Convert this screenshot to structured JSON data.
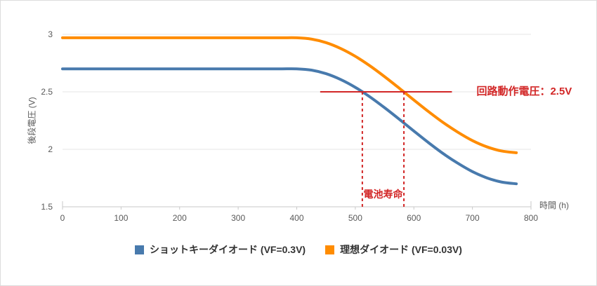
{
  "chart": {
    "y_axis": {
      "label": "後段電圧 (V)"
    },
    "x_axis": {
      "label": "時間 (h)"
    },
    "legend": [
      {
        "key": "schottky",
        "label": "ショットキーダイオード (VF=0.3V)",
        "color": "#487aad"
      },
      {
        "key": "ideal",
        "label": "理想ダイオード (VF=0.03V)",
        "color": "#ff8c00"
      }
    ],
    "annotations": {
      "threshold": {
        "label": "回路動作電圧：2.5V"
      },
      "battery_life": {
        "label": "電池寿命"
      }
    }
  },
  "chart_data": {
    "type": "line",
    "title": "",
    "xlabel": "時間 (h)",
    "ylabel": "後段電圧 (V)",
    "xlim": [
      0,
      800
    ],
    "ylim": [
      1.5,
      3.0
    ],
    "x_ticks": [
      "0",
      "100",
      "200",
      "300",
      "400",
      "500",
      "600",
      "700",
      "800"
    ],
    "y_ticks": [
      "1.5",
      "2",
      "2.5",
      "3"
    ],
    "grid": "horizontal",
    "legend_position": "bottom-center",
    "x": [
      0,
      25,
      50,
      75,
      100,
      125,
      150,
      175,
      200,
      225,
      250,
      275,
      300,
      325,
      350,
      375,
      400,
      425,
      450,
      475,
      500,
      525,
      550,
      575,
      600,
      625,
      650,
      675,
      700,
      725,
      750,
      775
    ],
    "series": [
      {
        "key": "schottky",
        "name": "ショットキーダイオード (VF=0.3V)",
        "color": "#487aad",
        "values": [
          2.7,
          2.7,
          2.7,
          2.7,
          2.7,
          2.7,
          2.7,
          2.7,
          2.7,
          2.7,
          2.7,
          2.7,
          2.7,
          2.7,
          2.7,
          2.7,
          2.7,
          2.689,
          2.658,
          2.607,
          2.539,
          2.456,
          2.362,
          2.262,
          2.159,
          2.058,
          1.963,
          1.879,
          1.806,
          1.751,
          1.715,
          1.7
        ]
      },
      {
        "key": "ideal",
        "name": "理想ダイオード (VF=0.03V)",
        "color": "#ff8c00",
        "values": [
          2.97,
          2.97,
          2.97,
          2.97,
          2.97,
          2.97,
          2.97,
          2.97,
          2.97,
          2.97,
          2.97,
          2.97,
          2.97,
          2.97,
          2.97,
          2.97,
          2.97,
          2.959,
          2.928,
          2.877,
          2.809,
          2.726,
          2.632,
          2.532,
          2.429,
          2.328,
          2.233,
          2.149,
          2.076,
          2.021,
          1.985,
          1.97
        ]
      }
    ],
    "annotations": {
      "threshold": {
        "label": "回路動作電圧：2.5V",
        "value": 2.5,
        "x_from": 440,
        "x_to": 665,
        "color": "#d22626"
      },
      "battery_life": {
        "label": "電池寿命",
        "x1": 512,
        "x2": 583,
        "y_top": 2.5,
        "color": "#d22626"
      }
    }
  }
}
